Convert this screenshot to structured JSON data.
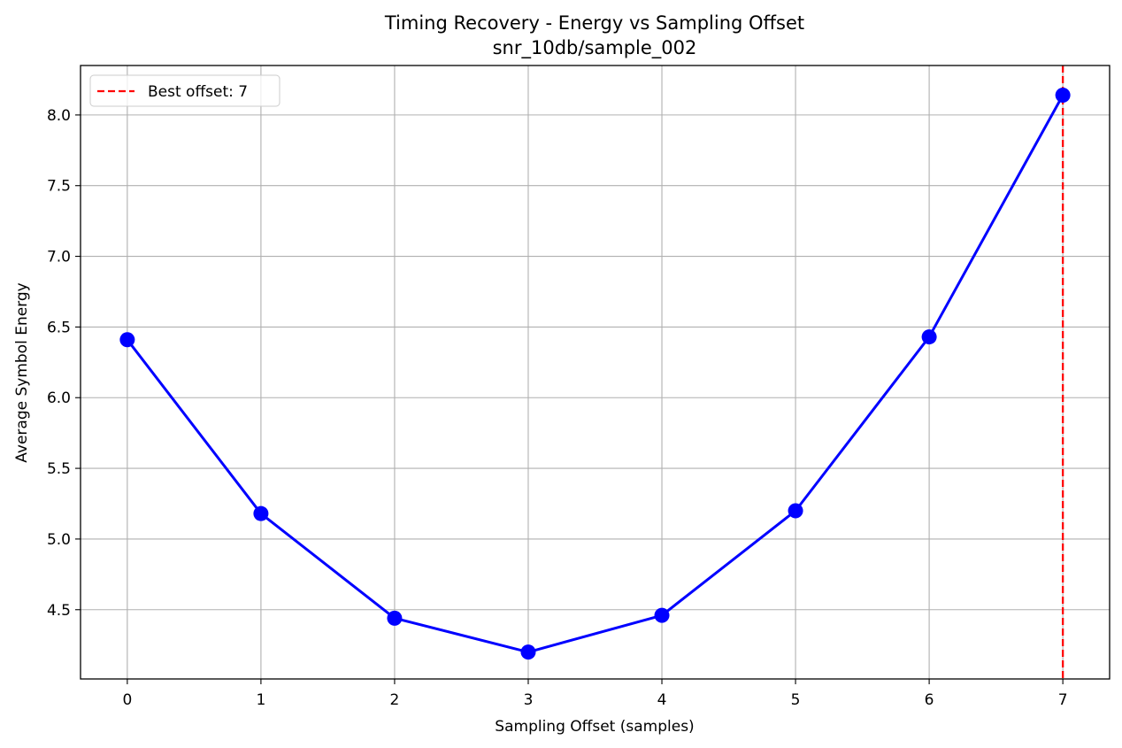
{
  "chart_data": {
    "type": "line",
    "title": "Timing Recovery - Energy vs Sampling Offset",
    "subtitle": "snr_10db/sample_002",
    "xlabel": "Sampling Offset (samples)",
    "ylabel": "Average Symbol Energy",
    "x": [
      0,
      1,
      2,
      3,
      4,
      5,
      6,
      7
    ],
    "series": [
      {
        "values": [
          6.41,
          5.18,
          4.44,
          4.2,
          4.46,
          5.2,
          6.43,
          8.14
        ],
        "color": "#0000ff",
        "marker": "circle"
      }
    ],
    "xlim": [
      -0.35,
      7.35
    ],
    "ylim": [
      4.01,
      8.35
    ],
    "xticks": [
      0,
      1,
      2,
      3,
      4,
      5,
      6,
      7
    ],
    "yticks": [
      4.5,
      5.0,
      5.5,
      6.0,
      6.5,
      7.0,
      7.5,
      8.0
    ],
    "xtick_labels": [
      "0",
      "1",
      "2",
      "3",
      "4",
      "5",
      "6",
      "7"
    ],
    "ytick_labels": [
      "4.5",
      "5.0",
      "5.5",
      "6.0",
      "6.5",
      "7.0",
      "7.5",
      "8.0"
    ],
    "vline": {
      "x": 7,
      "color": "#ff0000",
      "style": "dashed",
      "label": "Best offset: 7"
    },
    "legend": {
      "placement": "top-left",
      "entries": [
        "Best offset: 7"
      ]
    },
    "grid": true
  }
}
